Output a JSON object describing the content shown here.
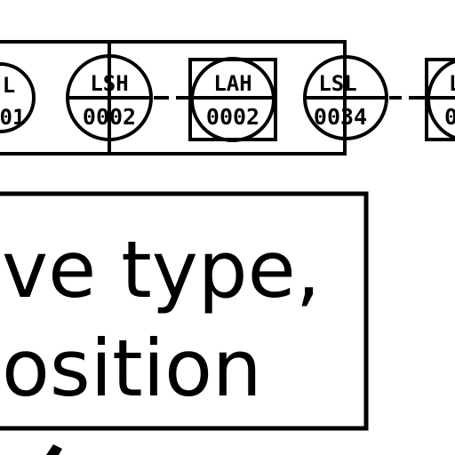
{
  "instruments": [
    {
      "type": "circle",
      "line1": "L",
      "line2": "01"
    },
    {
      "type": "circle",
      "line1": "LSH",
      "line2": "0002"
    },
    {
      "type": "shared-display",
      "line1": "LAH",
      "line2": "0002"
    },
    {
      "type": "circle",
      "line1": "LSL",
      "line2": "0034"
    },
    {
      "type": "shared-display",
      "line1": "L",
      "line2": "0"
    }
  ],
  "callout": {
    "line1": "ve type,",
    "line2": "osition"
  },
  "colors": {
    "ink": "#000000",
    "background": "#ffffff"
  }
}
